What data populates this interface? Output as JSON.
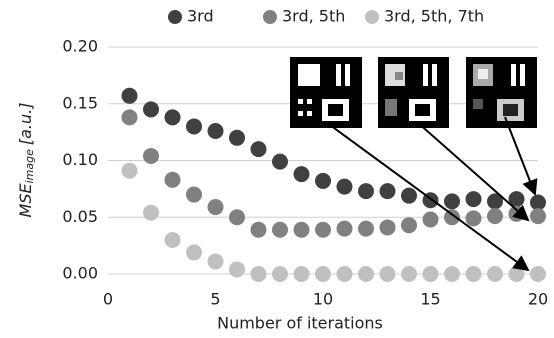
{
  "chart_data": {
    "type": "scatter",
    "ylabel": "MSE",
    "ylabel_subscript": "image",
    "ylabel_suffix": "[a.u.]",
    "xlabel": "Number of iterations",
    "x": [
      1,
      2,
      3,
      4,
      5,
      6,
      7,
      8,
      9,
      10,
      11,
      12,
      13,
      14,
      15,
      16,
      17,
      18,
      19,
      20
    ],
    "series": [
      {
        "name": "3rd",
        "color": "#404040",
        "values": [
          0.157,
          0.145,
          0.138,
          0.13,
          0.126,
          0.12,
          0.11,
          0.099,
          0.088,
          0.082,
          0.077,
          0.073,
          0.073,
          0.069,
          0.065,
          0.064,
          0.066,
          0.064,
          0.066,
          0.063
        ]
      },
      {
        "name": "3rd, 5th",
        "color": "#808080",
        "values": [
          0.138,
          0.104,
          0.083,
          0.07,
          0.059,
          0.05,
          0.039,
          0.039,
          0.039,
          0.039,
          0.04,
          0.04,
          0.041,
          0.043,
          0.048,
          0.05,
          0.049,
          0.051,
          0.053,
          0.051
        ]
      },
      {
        "name": "3rd, 5th, 7th",
        "color": "#c0c0c0",
        "values": [
          0.091,
          0.054,
          0.03,
          0.019,
          0.011,
          0.004,
          0,
          0,
          0,
          0,
          0,
          0,
          0,
          0,
          0,
          0,
          0,
          0,
          0,
          0
        ]
      }
    ],
    "xlim": [
      0,
      20
    ],
    "xticks": [
      0,
      5,
      10,
      15,
      20
    ],
    "ylim": [
      0,
      0.2
    ],
    "yticks": [
      {
        "value": 0,
        "label": "0.00"
      },
      {
        "value": 0.05,
        "label": "0.05"
      },
      {
        "value": 0.1,
        "label": "0.10"
      },
      {
        "value": 0.15,
        "label": "0.15"
      },
      {
        "value": 0.2,
        "label": "0.20"
      }
    ],
    "grid": true,
    "legend": "top"
  }
}
